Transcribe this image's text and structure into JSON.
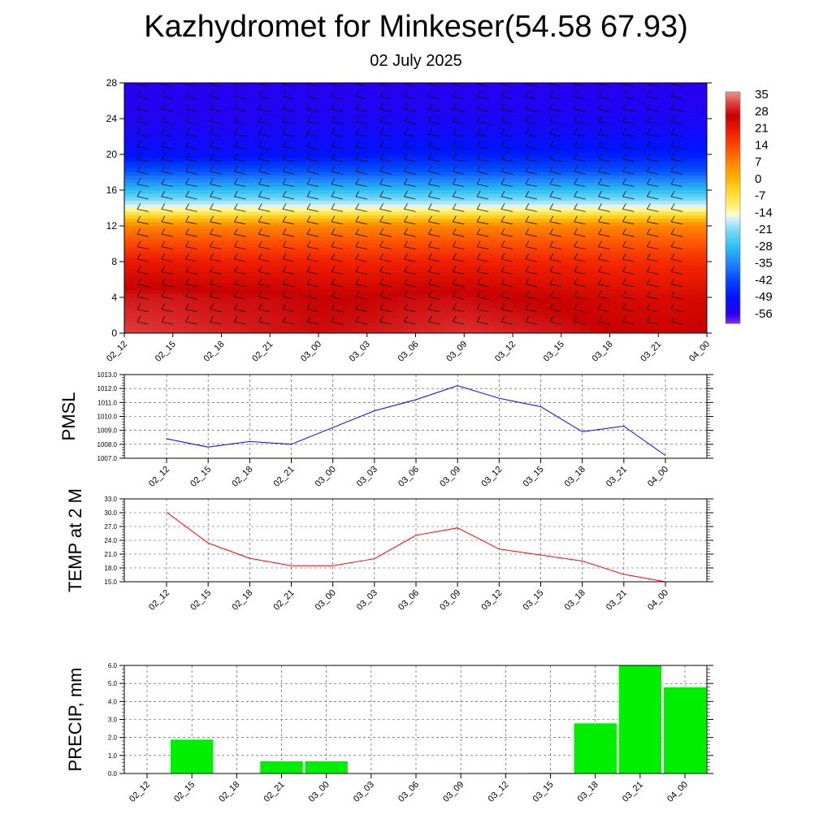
{
  "title": "Kazhydromet for Minkeser(54.58 67.93)",
  "subtitle": "02 July 2025",
  "chart_data": [
    {
      "type": "heatmap",
      "name": "temperature-cross-section",
      "x_categories": [
        "02_12",
        "02_15",
        "02_18",
        "02_21",
        "03_00",
        "03_03",
        "03_06",
        "03_09",
        "03_12",
        "03_15",
        "03_18",
        "03_21",
        "04_00"
      ],
      "y_ticks": [
        0,
        4,
        8,
        12,
        16,
        20,
        24,
        28
      ],
      "ylim": [
        0,
        28
      ],
      "colorbar_ticks": [
        35,
        28,
        21,
        14,
        7,
        0,
        -7,
        -14,
        -21,
        -28,
        -35,
        -42,
        -49,
        -56
      ],
      "colorbar_range": [
        -60,
        38
      ],
      "level_temperatures": [
        {
          "level": 0,
          "values": [
            33,
            32,
            31,
            30,
            29,
            30,
            31,
            32,
            31,
            30,
            28,
            27,
            28
          ]
        },
        {
          "level": 4,
          "values": [
            30,
            30,
            29,
            29,
            28,
            28,
            29,
            29,
            28,
            27,
            26,
            25,
            26
          ]
        },
        {
          "level": 8,
          "values": [
            22,
            22,
            21,
            21,
            21,
            20,
            21,
            21,
            20,
            20,
            19,
            19,
            19
          ]
        },
        {
          "level": 12,
          "values": [
            8,
            8,
            8,
            8,
            8,
            8,
            8,
            8,
            8,
            8,
            8,
            8,
            8
          ]
        },
        {
          "level": 14,
          "values": [
            -14,
            -14,
            -14,
            -14,
            -14,
            -14,
            -14,
            -14,
            -14,
            -14,
            -14,
            -14,
            -14
          ]
        },
        {
          "level": 16,
          "values": [
            -28,
            -28,
            -28,
            -28,
            -28,
            -28,
            -28,
            -28,
            -28,
            -28,
            -28,
            -28,
            -28
          ]
        },
        {
          "level": 18,
          "values": [
            -40,
            -40,
            -40,
            -40,
            -40,
            -40,
            -40,
            -40,
            -40,
            -40,
            -40,
            -40,
            -40
          ]
        },
        {
          "level": 20,
          "values": [
            -50,
            -50,
            -51,
            -50,
            -50,
            -49,
            -48,
            -48,
            -48,
            -48,
            -48,
            -48,
            -48
          ]
        },
        {
          "level": 24,
          "values": [
            -55,
            -55,
            -55,
            -54,
            -54,
            -54,
            -54,
            -54,
            -54,
            -54,
            -54,
            -54,
            -54
          ]
        },
        {
          "level": 28,
          "values": [
            -56,
            -56,
            -56,
            -56,
            -56,
            -56,
            -56,
            -56,
            -56,
            -56,
            -56,
            -56,
            -56
          ]
        }
      ]
    },
    {
      "type": "line",
      "name": "pmsl",
      "ylabel": "PMSL",
      "x": [
        "02_12",
        "02_15",
        "02_18",
        "02_21",
        "03_00",
        "03_03",
        "03_06",
        "03_09",
        "03_12",
        "03_15",
        "03_18",
        "03_21",
        "04_00"
      ],
      "series": [
        {
          "values": [
            1008.4,
            1007.8,
            1008.2,
            1008.0,
            1009.2,
            1010.4,
            1011.2,
            1012.2,
            1011.3,
            1010.7,
            1008.9,
            1009.3,
            1007.2
          ],
          "color": "#0000ff"
        }
      ],
      "ylim": [
        1007.0,
        1013.0
      ],
      "y_ticks": [
        "1007.0",
        "1008.0",
        "1009.0",
        "1010.0",
        "1011.0",
        "1012.0",
        "1013.0"
      ]
    },
    {
      "type": "line",
      "name": "temp-2m",
      "ylabel": "TEMP at 2 M",
      "x": [
        "02_12",
        "02_15",
        "02_18",
        "02_21",
        "03_00",
        "03_03",
        "03_06",
        "03_09",
        "03_12",
        "03_15",
        "03_18",
        "03_21",
        "04_00"
      ],
      "series": [
        {
          "values": [
            30.1,
            23.4,
            20.1,
            18.5,
            18.5,
            20.0,
            25.1,
            26.7,
            22.1,
            20.8,
            19.5,
            16.6,
            15.0
          ],
          "color": "#ff0000"
        }
      ],
      "ylim": [
        15.0,
        33.0
      ],
      "y_ticks": [
        "15.0",
        "18.0",
        "21.0",
        "24.0",
        "27.0",
        "30.0",
        "33.0"
      ]
    },
    {
      "type": "bar",
      "name": "precip",
      "ylabel": "PRECIP, mm",
      "categories": [
        "02_12",
        "02_15",
        "02_18",
        "02_21",
        "03_00",
        "03_03",
        "03_06",
        "03_09",
        "03_12",
        "03_15",
        "03_18",
        "03_21",
        "04_00"
      ],
      "values": [
        0.0,
        1.9,
        0.0,
        0.7,
        0.7,
        0.03,
        0.0,
        0.0,
        0.0,
        0.05,
        2.8,
        6.0,
        4.8
      ],
      "color": "#00ee00",
      "ylim": [
        0.0,
        6.0
      ],
      "y_ticks": [
        "0.0",
        "1.0",
        "2.0",
        "3.0",
        "4.0",
        "5.0",
        "6.0"
      ]
    }
  ]
}
